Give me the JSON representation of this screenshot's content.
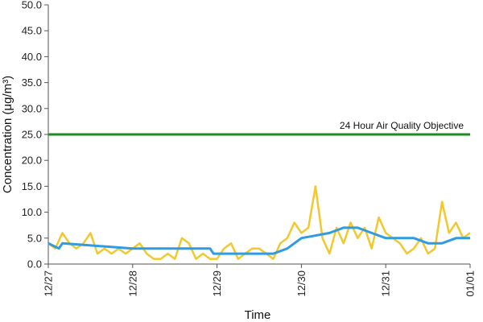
{
  "chart_data": {
    "type": "line",
    "title": "",
    "xlabel": "Time",
    "ylabel": "Concentration (μg/m³)",
    "ylim": [
      0,
      50
    ],
    "yticks": [
      "0.0",
      "5.0",
      "10.0",
      "15.0",
      "20.0",
      "25.0",
      "30.0",
      "35.0",
      "40.0",
      "45.0",
      "50.0"
    ],
    "xlim": [
      "12/27 00:00",
      "01/01 00:00"
    ],
    "xticks": [
      "12/27",
      "12/28",
      "12/29",
      "12/30",
      "12/31",
      "01/01"
    ],
    "grid": false,
    "legend": "none",
    "colors": {
      "yellow_series": "#f2c82c",
      "blue_series": "#2f9be0",
      "objective": "#1f8a1f"
    },
    "reference_lines": [
      {
        "label": "24 Hour Air Quality Objective",
        "value": 25.0
      }
    ],
    "series": [
      {
        "x": [
          "12/27 00:00",
          "12/27 02:00",
          "12/27 04:00",
          "12/27 06:00",
          "12/27 08:00",
          "12/27 10:00",
          "12/27 12:00",
          "12/27 14:00",
          "12/27 16:00",
          "12/27 18:00",
          "12/27 20:00",
          "12/27 22:00",
          "12/28 00:00",
          "12/28 02:00",
          "12/28 04:00",
          "12/28 06:00",
          "12/28 08:00",
          "12/28 10:00",
          "12/28 12:00",
          "12/28 14:00",
          "12/28 16:00",
          "12/28 18:00",
          "12/28 20:00",
          "12/28 22:00",
          "12/29 00:00",
          "12/29 02:00",
          "12/29 04:00",
          "12/29 06:00",
          "12/29 08:00",
          "12/29 10:00",
          "12/29 12:00",
          "12/29 14:00",
          "12/29 16:00",
          "12/29 18:00",
          "12/29 20:00",
          "12/29 22:00",
          "12/30 00:00",
          "12/30 02:00",
          "12/30 04:00",
          "12/30 06:00",
          "12/30 08:00",
          "12/30 10:00",
          "12/30 12:00",
          "12/30 14:00",
          "12/30 16:00",
          "12/30 18:00",
          "12/30 20:00",
          "12/30 22:00",
          "12/31 00:00",
          "12/31 02:00",
          "12/31 04:00",
          "12/31 06:00",
          "12/31 08:00",
          "12/31 10:00",
          "12/31 12:00",
          "12/31 14:00",
          "12/31 16:00",
          "12/31 18:00",
          "12/31 20:00",
          "12/31 22:00",
          "01/01 00:00"
        ],
        "values": [
          4,
          3,
          6,
          4,
          3,
          4,
          6,
          2,
          3,
          2,
          3,
          2,
          3,
          4,
          2,
          1,
          1,
          2,
          1,
          5,
          4,
          1,
          2,
          1,
          1,
          3,
          4,
          1,
          2,
          3,
          3,
          2,
          1,
          4,
          5,
          8,
          6,
          7,
          15,
          5,
          2,
          7,
          4,
          8,
          5,
          7,
          3,
          9,
          6,
          5,
          4,
          2,
          3,
          5,
          2,
          3,
          12,
          6,
          8,
          5,
          6
        ]
      },
      {
        "x": [
          "12/27 00:00",
          "12/27 03:00",
          "12/27 04:00",
          "12/28 00:00",
          "12/28 22:00",
          "12/28 23:00",
          "12/29 08:00",
          "12/29 12:00",
          "12/29 16:00",
          "12/29 20:00",
          "12/30 00:00",
          "12/30 08:00",
          "12/30 12:00",
          "12/30 16:00",
          "12/30 20:00",
          "12/31 00:00",
          "12/31 08:00",
          "12/31 12:00",
          "12/31 16:00",
          "12/31 20:00",
          "01/01 00:00"
        ],
        "values": [
          4,
          3,
          4,
          3,
          3,
          2,
          2,
          2,
          2,
          3,
          5,
          6,
          7,
          7,
          6,
          5,
          5,
          4,
          4,
          5,
          5
        ]
      }
    ]
  }
}
